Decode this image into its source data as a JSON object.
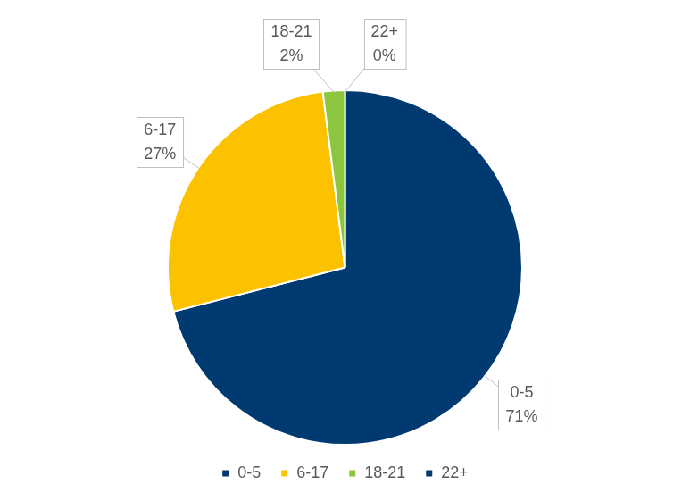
{
  "chart_data": {
    "type": "pie",
    "categories": [
      "0-5",
      "6-17",
      "18-21",
      "22+"
    ],
    "values": [
      71,
      27,
      2,
      0
    ],
    "value_labels": [
      "71%",
      "27%",
      "2%",
      "0%"
    ],
    "colors": [
      "#003a70",
      "#fcc200",
      "#8cc63f",
      "#003a70"
    ],
    "legend": "bottom",
    "data_labels": true
  }
}
